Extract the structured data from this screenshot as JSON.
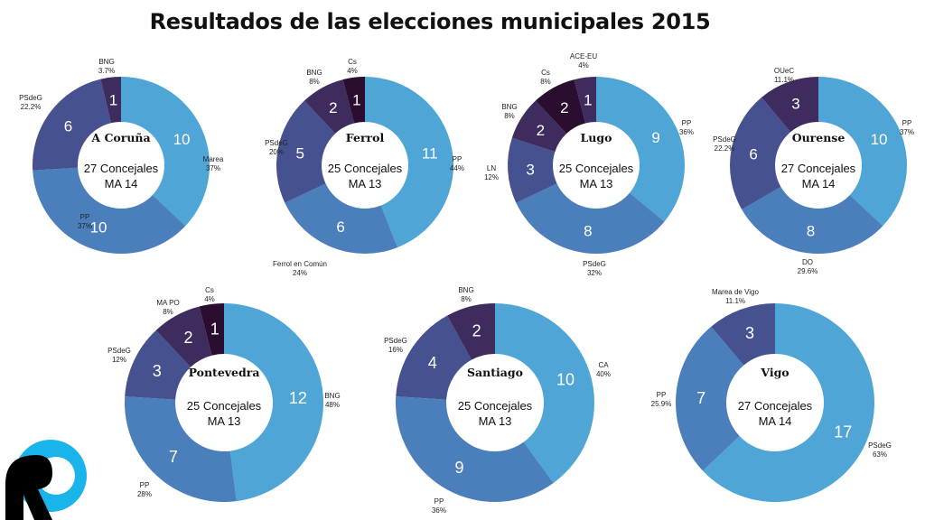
{
  "title": "Resultados de las elecciones municipales 2015",
  "colors": {
    "c1": "#4fa6d6",
    "c2": "#4a7fbb",
    "c3": "#45528f",
    "c4": "#3f2c5f",
    "c5": "#2a0d2f",
    "hole": "#ffffff",
    "label": "#ffffff",
    "logo_blue": "#18b4ea",
    "logo_dark": "#000000"
  },
  "logo_icon": "r-logo-icon",
  "chart_data": [
    {
      "type": "pie",
      "donut": true,
      "city": "A Coruña",
      "center_lines": [
        "27 Concejales",
        "MA 14"
      ],
      "slices": [
        {
          "party": "Marea",
          "seats": 10,
          "pct": "37%",
          "color": "c1"
        },
        {
          "party": "PP",
          "seats": 10,
          "pct": "37%",
          "color": "c2"
        },
        {
          "party": "PSdeG",
          "seats": 6,
          "pct": "22.2%",
          "color": "c3"
        },
        {
          "party": "BNG",
          "seats": 1,
          "pct": "3.7%",
          "color": "c4"
        }
      ]
    },
    {
      "type": "pie",
      "donut": true,
      "city": "Ferrol",
      "center_lines": [
        "25 Concejales",
        "MA 13"
      ],
      "slices": [
        {
          "party": "PP",
          "seats": 11,
          "pct": "44%",
          "color": "c1"
        },
        {
          "party": "Ferrol en Común",
          "seats": 6,
          "pct": "24%",
          "color": "c2"
        },
        {
          "party": "PSdeG",
          "seats": 5,
          "pct": "20%",
          "color": "c3"
        },
        {
          "party": "BNG",
          "seats": 2,
          "pct": "8%",
          "color": "c4"
        },
        {
          "party": "Cs",
          "seats": 1,
          "pct": "4%",
          "color": "c5"
        }
      ]
    },
    {
      "type": "pie",
      "donut": true,
      "city": "Lugo",
      "center_lines": [
        "25 Concejales",
        "MA 13"
      ],
      "slices": [
        {
          "party": "PP",
          "seats": 9,
          "pct": "36%",
          "color": "c1"
        },
        {
          "party": "PSdeG",
          "seats": 8,
          "pct": "32%",
          "color": "c2"
        },
        {
          "party": "LN",
          "seats": 3,
          "pct": "12%",
          "color": "c3"
        },
        {
          "party": "BNG",
          "seats": 2,
          "pct": "8%",
          "color": "c4"
        },
        {
          "party": "Cs",
          "seats": 2,
          "pct": "8%",
          "color": "c5"
        },
        {
          "party": "ACE-EU",
          "seats": 1,
          "pct": "4%",
          "color": "c4"
        }
      ]
    },
    {
      "type": "pie",
      "donut": true,
      "city": "Ourense",
      "center_lines": [
        "27 Concejales",
        "MA 14"
      ],
      "slices": [
        {
          "party": "PP",
          "seats": 10,
          "pct": "37%",
          "color": "c1"
        },
        {
          "party": "DO",
          "seats": 8,
          "pct": "29.6%",
          "color": "c2"
        },
        {
          "party": "PSdeG",
          "seats": 6,
          "pct": "22.2%",
          "color": "c3"
        },
        {
          "party": "OUeC",
          "seats": 3,
          "pct": "11.1%",
          "color": "c4"
        }
      ]
    },
    {
      "type": "pie",
      "donut": true,
      "city": "Pontevedra",
      "center_lines": [
        "25 Concejales",
        "MA 13"
      ],
      "slices": [
        {
          "party": "BNG",
          "seats": 12,
          "pct": "48%",
          "color": "c1"
        },
        {
          "party": "PP",
          "seats": 7,
          "pct": "28%",
          "color": "c2"
        },
        {
          "party": "PSdeG",
          "seats": 3,
          "pct": "12%",
          "color": "c3"
        },
        {
          "party": "MA PO",
          "seats": 2,
          "pct": "8%",
          "color": "c4"
        },
        {
          "party": "Cs",
          "seats": 1,
          "pct": "4%",
          "color": "c5"
        }
      ]
    },
    {
      "type": "pie",
      "donut": true,
      "city": "Santiago",
      "center_lines": [
        "25 Concejales",
        "MA 13"
      ],
      "slices": [
        {
          "party": "CA",
          "seats": 10,
          "pct": "40%",
          "color": "c1"
        },
        {
          "party": "PP",
          "seats": 9,
          "pct": "36%",
          "color": "c2"
        },
        {
          "party": "PSdeG",
          "seats": 4,
          "pct": "16%",
          "color": "c3"
        },
        {
          "party": "BNG",
          "seats": 2,
          "pct": "8%",
          "color": "c4"
        }
      ]
    },
    {
      "type": "pie",
      "donut": true,
      "city": "Vigo",
      "center_lines": [
        "27 Concejales",
        "MA 14"
      ],
      "slices": [
        {
          "party": "PSdeG",
          "seats": 17,
          "pct": "63%",
          "color": "c1"
        },
        {
          "party": "PP",
          "seats": 7,
          "pct": "25.9%",
          "color": "c2"
        },
        {
          "party": "Marea de Vigo",
          "seats": 3,
          "pct": "11.1%",
          "color": "c3"
        }
      ]
    }
  ]
}
